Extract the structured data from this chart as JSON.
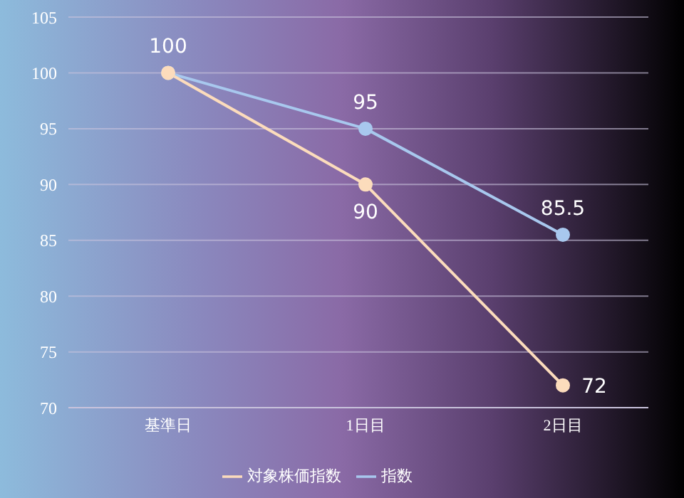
{
  "chart_data": {
    "type": "line",
    "categories": [
      "基準日",
      "1日目",
      "2日目"
    ],
    "series": [
      {
        "name": "指数",
        "color": "#a8c8ee",
        "values": [
          100,
          95,
          85.5
        ],
        "value_labels": [
          "100",
          "95",
          "85.5"
        ]
      },
      {
        "name": "対象株価指数",
        "color": "#fcdcbc",
        "values": [
          100,
          90,
          72
        ],
        "value_labels": [
          null,
          "90",
          "72"
        ]
      }
    ],
    "ylim": [
      70,
      105
    ],
    "yticks": [
      70,
      75,
      80,
      85,
      90,
      95,
      100,
      105
    ],
    "grid": "y",
    "legend": "bottom",
    "marker": "circle",
    "line_style": "solid"
  }
}
